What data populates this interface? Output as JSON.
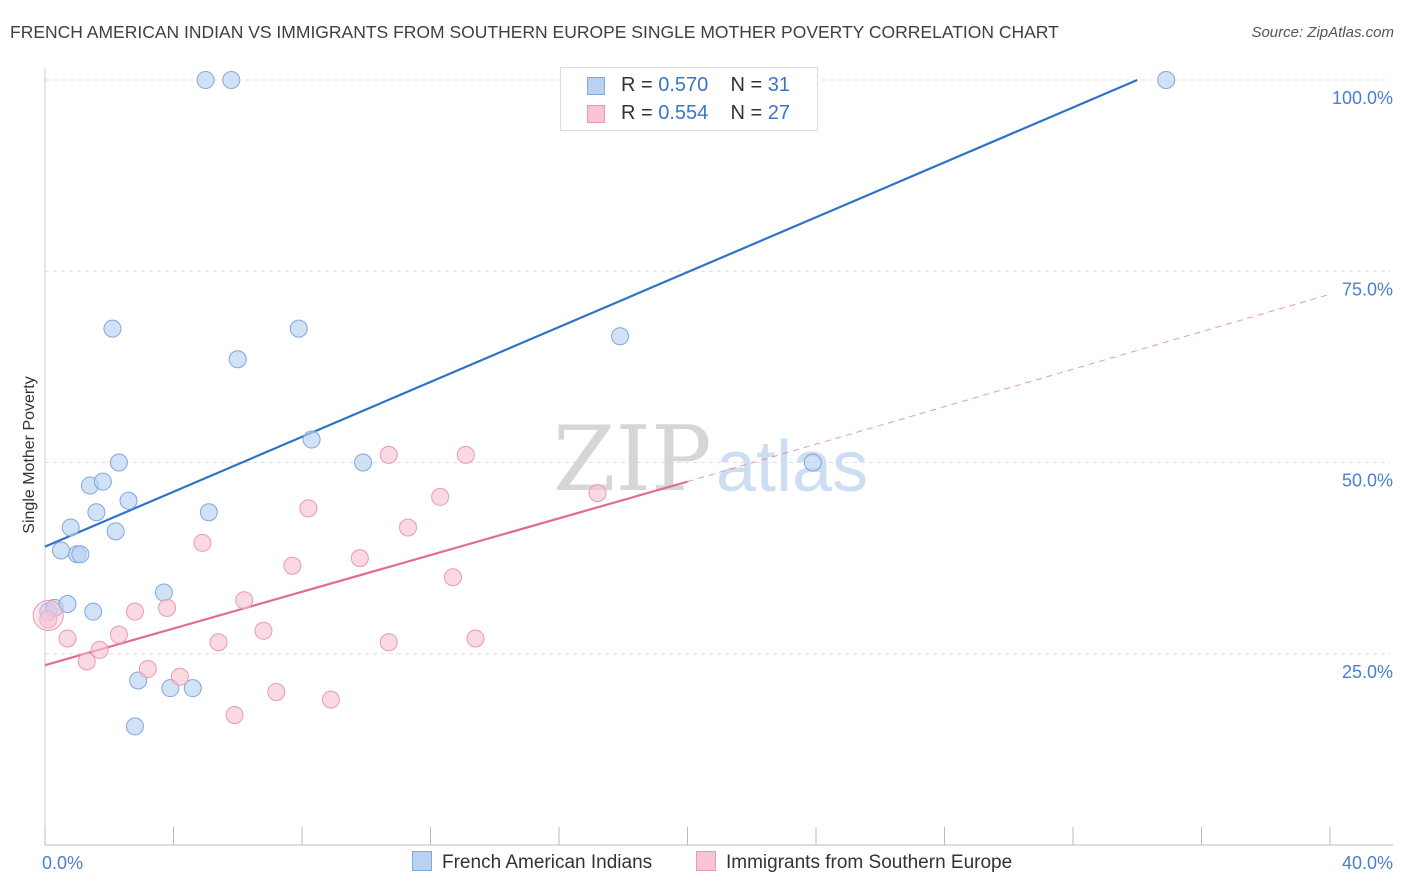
{
  "title": "FRENCH AMERICAN INDIAN VS IMMIGRANTS FROM SOUTHERN EUROPE SINGLE MOTHER POVERTY CORRELATION CHART",
  "source": "Source: ZipAtlas.com",
  "watermark": {
    "zip": "ZIP",
    "atlas": "atlas"
  },
  "legend": {
    "series1": {
      "r_label": "R =",
      "r_value": "0.570",
      "n_label": "N =",
      "n_value": "31"
    },
    "series2": {
      "r_label": "R =",
      "r_value": "0.554",
      "n_label": "N =",
      "n_value": "27"
    }
  },
  "colors": {
    "blue_fill": "#b8d2f3",
    "blue_stroke": "#7fa8dc",
    "blue_line": "#2f72c9",
    "pink_fill": "#f9c4d3",
    "pink_stroke": "#e99ab1",
    "pink_line": "#e06b93",
    "grid": "#dedede",
    "tick_label": "#4a7fd0"
  },
  "chart_data": {
    "type": "scatter",
    "ylabel": "Single Mother Poverty",
    "xlim": [
      0,
      40
    ],
    "ylim": [
      0,
      100
    ],
    "x_tick_labels": [
      {
        "value": 0,
        "label": "0.0%"
      },
      {
        "value": 40,
        "label": "40.0%"
      }
    ],
    "y_tick_labels": [
      {
        "value": 25,
        "label": "25.0%"
      },
      {
        "value": 50,
        "label": "50.0%"
      },
      {
        "value": 75,
        "label": "75.0%"
      },
      {
        "value": 100,
        "label": "100.0%"
      }
    ],
    "series": [
      {
        "name": "French American Indians",
        "color": "#b8d2f3",
        "points": [
          [
            0.1,
            30.5
          ],
          [
            0.3,
            31
          ],
          [
            0.5,
            38.5
          ],
          [
            0.7,
            31.5
          ],
          [
            0.8,
            41.5
          ],
          [
            1.0,
            38
          ],
          [
            1.1,
            38
          ],
          [
            1.4,
            47
          ],
          [
            1.5,
            30.5
          ],
          [
            1.6,
            43.5
          ],
          [
            1.8,
            47.5
          ],
          [
            2.1,
            67.5
          ],
          [
            2.2,
            41
          ],
          [
            2.3,
            50
          ],
          [
            2.6,
            45
          ],
          [
            2.8,
            15.5
          ],
          [
            2.9,
            21.5
          ],
          [
            3.7,
            33
          ],
          [
            3.9,
            20.5
          ],
          [
            4.6,
            20.5
          ],
          [
            5.0,
            100
          ],
          [
            5.1,
            43.5
          ],
          [
            5.8,
            100
          ],
          [
            6.0,
            63.5
          ],
          [
            7.9,
            67.5
          ],
          [
            8.3,
            53
          ],
          [
            9.9,
            50
          ],
          [
            17.2,
            100
          ],
          [
            17.9,
            66.5
          ],
          [
            23.9,
            50
          ],
          [
            34.9,
            100
          ]
        ],
        "trend": {
          "x": [
            0,
            34
          ],
          "y": [
            39,
            100
          ]
        }
      },
      {
        "name": "Immigrants from Southern Europe",
        "color": "#f9c4d3",
        "points": [
          [
            0.1,
            29.5
          ],
          [
            0.7,
            27
          ],
          [
            1.3,
            24
          ],
          [
            1.7,
            25.5
          ],
          [
            2.3,
            27.5
          ],
          [
            2.8,
            30.5
          ],
          [
            3.2,
            23
          ],
          [
            3.8,
            31
          ],
          [
            4.2,
            22
          ],
          [
            4.9,
            39.5
          ],
          [
            5.4,
            26.5
          ],
          [
            5.9,
            17
          ],
          [
            6.2,
            32
          ],
          [
            6.8,
            28
          ],
          [
            7.2,
            20
          ],
          [
            7.7,
            36.5
          ],
          [
            8.2,
            44
          ],
          [
            8.9,
            19
          ],
          [
            9.8,
            37.5
          ],
          [
            10.7,
            51
          ],
          [
            10.7,
            26.5
          ],
          [
            11.3,
            41.5
          ],
          [
            12.3,
            45.5
          ],
          [
            12.7,
            35
          ],
          [
            13.1,
            51
          ],
          [
            13.4,
            27
          ],
          [
            17.2,
            46
          ]
        ],
        "trend": {
          "x": [
            0,
            20
          ],
          "y": [
            23.5,
            47.5
          ]
        },
        "trend_extension": {
          "x": [
            20,
            40
          ],
          "y": [
            47.5,
            72
          ]
        }
      }
    ]
  }
}
